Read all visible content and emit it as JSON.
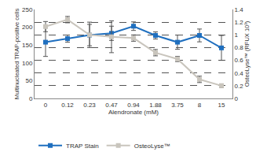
{
  "chart_data": {
    "type": "line",
    "x_label": "Alendronate (mM)",
    "y_label": "Multinucleated TRAP-positive cells",
    "y2_label": "OsteoLyse™ (RFUX 10³)",
    "categories": [
      "0",
      "0.12",
      "0.23",
      "0.47",
      "0.94",
      "1.88",
      "3.75",
      "8",
      "15"
    ],
    "series": [
      {
        "name": "TRAP Stain",
        "color": "#1f6fbf",
        "marker": "square",
        "values": [
          158,
          168,
          178,
          183,
          203,
          177,
          158,
          177,
          142
        ],
        "error": [
          40,
          10,
          30,
          20,
          12,
          10,
          20,
          18,
          35
        ]
      },
      {
        "name": "OsteoLyse™",
        "color": "#c9c5bd",
        "marker": "square",
        "axis": "y2",
        "values": [
          1.13,
          1.24,
          1.0,
          0.97,
          0.95,
          0.72,
          0.62,
          0.3,
          0.2
        ],
        "error": [
          0.08,
          0.05,
          0.2,
          0.25,
          0.05,
          0.05,
          0.04,
          0.05,
          0.03
        ]
      }
    ],
    "ylim": [
      0,
      250
    ],
    "yticks": [
      0,
      50,
      100,
      150,
      200,
      250
    ],
    "y2lim": [
      0,
      1.4
    ],
    "y2ticks": [
      0,
      0.2,
      0.4,
      0.6,
      0.8,
      1,
      1.2,
      1.4
    ],
    "grid": true,
    "legend": "bottom"
  }
}
